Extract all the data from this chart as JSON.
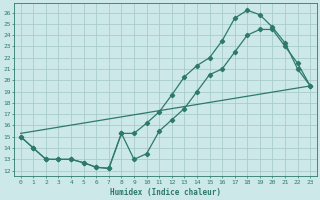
{
  "xlabel": "Humidex (Indice chaleur)",
  "bg_color": "#cde8e8",
  "grid_color": "#a8cccc",
  "line_color": "#2d7a6a",
  "marker": "D",
  "markersize": 2.2,
  "linewidth": 0.9,
  "xlim": [
    -0.5,
    23.5
  ],
  "ylim": [
    11.5,
    26.8
  ],
  "xticks": [
    0,
    1,
    2,
    3,
    4,
    5,
    6,
    7,
    8,
    9,
    10,
    11,
    12,
    13,
    14,
    15,
    16,
    17,
    18,
    19,
    20,
    21,
    22,
    23
  ],
  "yticks": [
    12,
    13,
    14,
    15,
    16,
    17,
    18,
    19,
    20,
    21,
    22,
    23,
    24,
    25,
    26
  ],
  "line1_x": [
    0,
    1,
    2,
    3,
    4,
    5,
    6,
    7,
    8,
    9,
    10,
    11,
    12,
    13,
    14,
    15,
    16,
    17,
    18,
    19,
    20,
    21,
    22,
    23
  ],
  "line1_y": [
    15,
    14,
    13,
    13,
    13,
    12.7,
    12.3,
    12.2,
    15.3,
    13,
    13.5,
    15.5,
    16.5,
    17.5,
    19.0,
    20.5,
    21.0,
    22.5,
    24.0,
    24.5,
    24.5,
    23.0,
    21.5,
    19.5
  ],
  "line2_x": [
    0,
    1,
    2,
    3,
    4,
    5,
    6,
    7,
    8,
    9,
    10,
    11,
    12,
    13,
    14,
    15,
    16,
    17,
    18,
    19,
    20,
    21,
    22,
    23
  ],
  "line2_y": [
    15,
    14,
    13,
    13,
    13,
    12.7,
    12.3,
    12.2,
    15.3,
    15.3,
    16.2,
    17.2,
    18.7,
    20.3,
    21.3,
    22.0,
    23.5,
    25.5,
    26.2,
    25.8,
    24.7,
    23.3,
    21.0,
    19.5
  ],
  "line3_x": [
    0,
    23
  ],
  "line3_y": [
    15.3,
    19.5
  ]
}
